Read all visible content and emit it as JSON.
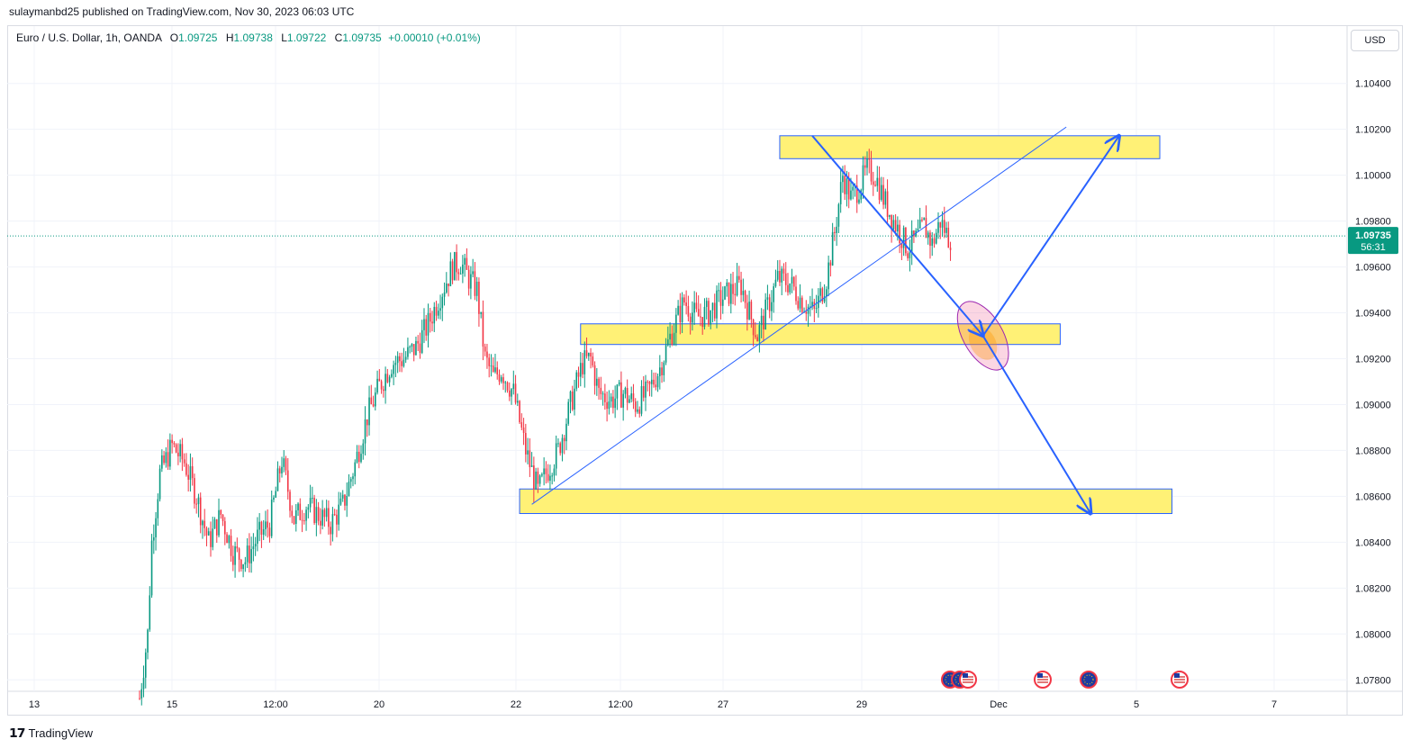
{
  "publisher": "sulaymanbd25 published on TradingView.com, Nov 30, 2023 06:03 UTC",
  "legend": {
    "symbol": "Euro / U.S. Dollar, 1h, OANDA",
    "open_label": "O",
    "open": "1.09725",
    "high_label": "H",
    "high": "1.09738",
    "low_label": "L",
    "low": "1.09722",
    "close_label": "C",
    "close": "1.09735",
    "change": "+0.00010 (+0.01%)"
  },
  "currency": "USD",
  "price_tag": {
    "price": "1.09735",
    "countdown": "56:31"
  },
  "footer_brand": "TradingView",
  "colors": {
    "up": "#089981",
    "down": "#f23645",
    "zone_fill": "#fff176",
    "zone_border": "#2962ff",
    "arrow": "#2962ff",
    "trend": "#2962ff"
  },
  "chart_data": {
    "type": "candlestick",
    "symbol": "EURUSD",
    "timeframe": "1h",
    "ylim": [
      1.0775,
      1.1065
    ],
    "y_ticks": [
      "1.10400",
      "1.10200",
      "1.10000",
      "1.09800",
      "1.09600",
      "1.09400",
      "1.09200",
      "1.09000",
      "1.08800",
      "1.08600",
      "1.08400",
      "1.08200",
      "1.08000",
      "1.07800"
    ],
    "x_ticks": [
      "13",
      "15",
      "12:00",
      "20",
      "22",
      "12:00",
      "27",
      "29",
      "Dec",
      "5",
      "7"
    ],
    "approx_path": [
      [
        0,
        1.0772
      ],
      [
        4,
        1.08
      ],
      [
        6,
        1.084
      ],
      [
        10,
        1.087
      ],
      [
        16,
        1.0882
      ],
      [
        22,
        1.0875
      ],
      [
        28,
        1.086
      ],
      [
        34,
        1.084
      ],
      [
        40,
        1.0852
      ],
      [
        46,
        1.0836
      ],
      [
        52,
        1.0832
      ],
      [
        58,
        1.0842
      ],
      [
        64,
        1.0848
      ],
      [
        70,
        1.0876
      ],
      [
        76,
        1.085
      ],
      [
        82,
        1.0856
      ],
      [
        88,
        1.0852
      ],
      [
        94,
        1.0848
      ],
      [
        100,
        1.0856
      ],
      [
        106,
        1.0874
      ],
      [
        112,
        1.0895
      ],
      [
        118,
        1.0908
      ],
      [
        124,
        1.0918
      ],
      [
        130,
        1.092
      ],
      [
        136,
        1.0925
      ],
      [
        142,
        1.0935
      ],
      [
        148,
        1.0948
      ],
      [
        154,
        1.096
      ],
      [
        158,
        1.0962
      ],
      [
        162,
        1.0955
      ],
      [
        166,
        1.095
      ],
      [
        170,
        1.092
      ],
      [
        174,
        1.0912
      ],
      [
        178,
        1.0915
      ],
      [
        184,
        1.0905
      ],
      [
        190,
        1.088
      ],
      [
        196,
        1.0862
      ],
      [
        200,
        1.087
      ],
      [
        206,
        1.088
      ],
      [
        212,
        1.09
      ],
      [
        218,
        1.0918
      ],
      [
        222,
        1.092
      ],
      [
        226,
        1.0905
      ],
      [
        232,
        1.0902
      ],
      [
        238,
        1.0905
      ],
      [
        244,
        1.09
      ],
      [
        250,
        1.0905
      ],
      [
        256,
        1.0916
      ],
      [
        262,
        1.0932
      ],
      [
        268,
        1.0945
      ],
      [
        274,
        1.0938
      ],
      [
        280,
        1.094
      ],
      [
        286,
        1.0946
      ],
      [
        292,
        1.095
      ],
      [
        296,
        1.0952
      ],
      [
        300,
        1.094
      ],
      [
        304,
        1.093
      ],
      [
        308,
        1.094
      ],
      [
        314,
        1.0955
      ],
      [
        320,
        1.0953
      ],
      [
        326,
        1.0945
      ],
      [
        332,
        1.094
      ],
      [
        338,
        1.0955
      ],
      [
        342,
        1.0975
      ],
      [
        346,
        1.1
      ],
      [
        350,
        1.099
      ],
      [
        354,
        1.0995
      ],
      [
        358,
        1.1002
      ],
      [
        362,
        1.1
      ],
      [
        366,
        1.099
      ],
      [
        370,
        1.0982
      ],
      [
        374,
        1.0975
      ],
      [
        378,
        1.0968
      ],
      [
        382,
        1.0972
      ],
      [
        386,
        1.0978
      ],
      [
        390,
        1.097
      ],
      [
        394,
        1.098
      ],
      [
        398,
        1.0973
      ]
    ],
    "candle_count": 400,
    "annotations": {
      "zones": [
        {
          "from_candle": 315,
          "to_candle": 502,
          "top": 1.10172,
          "bottom": 1.10072
        },
        {
          "from_candle": 217,
          "to_candle": 453,
          "top": 1.09352,
          "bottom": 1.09262
        },
        {
          "from_candle": 187,
          "to_candle": 508,
          "top": 1.08632,
          "bottom": 1.08525
        }
      ],
      "trendline": {
        "from": [
          193,
          1.08565
        ],
        "to": [
          456,
          1.1021
        ]
      },
      "arrows": [
        {
          "from": [
            331,
            1.10172
          ],
          "to": [
            415,
            1.093
          ]
        },
        {
          "from": [
            415,
            1.093
          ],
          "to": [
            482,
            1.10172
          ]
        },
        {
          "from": [
            415,
            1.093
          ],
          "to": [
            468,
            1.08525
          ]
        }
      ],
      "ellipse": {
        "center_candle": 415,
        "center_price": 1.093
      }
    }
  }
}
